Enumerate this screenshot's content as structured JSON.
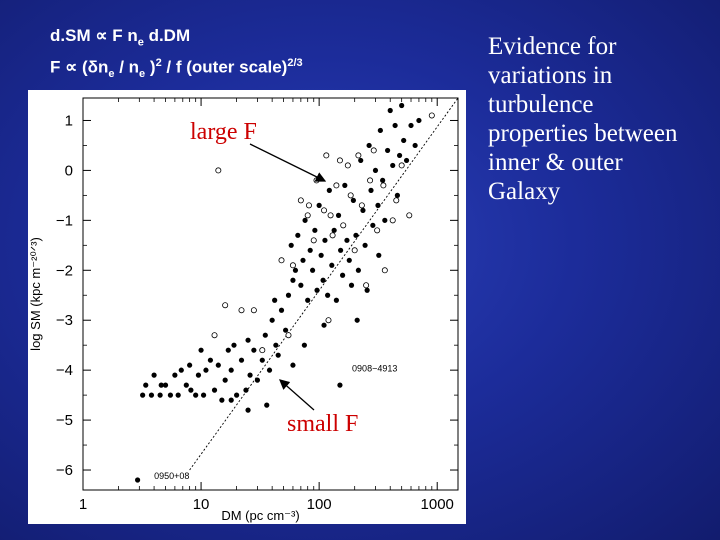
{
  "formula": {
    "line1": {
      "a": "d.SM ",
      "prop": "∝",
      "b": "  F n",
      "sub": "e",
      "c": " d.DM"
    },
    "line2": {
      "a": "F ",
      "prop": "∝",
      "b": " (",
      "delta": "δ",
      "c": "n",
      "sub1": "e",
      "d": " / n",
      "sub2": "e",
      "e": " )",
      "sup1": "2",
      "f": " / f (outer scale)",
      "sup2": "2/3"
    }
  },
  "side_text": [
    "Evidence for",
    "variations in",
    "turbulence",
    "properties between",
    "inner & outer",
    "Galaxy"
  ],
  "colors": {
    "background": "#1c2c9a",
    "annotation": "#cc0000",
    "panel": "#ffffff"
  },
  "chart_data": {
    "type": "scatter",
    "xlabel": "DM (pc cm⁻³)",
    "ylabel": "log SM (kpc m⁻²⁰ᐟ³)",
    "x_scale": "log",
    "xlim": [
      1,
      1500
    ],
    "ylim": [
      -6.4,
      1.45
    ],
    "x_ticks": [
      1,
      10,
      100,
      1000
    ],
    "x_tick_labels": [
      "1",
      "10",
      "100",
      "1000"
    ],
    "y_ticks": [
      1,
      0,
      -1,
      -2,
      -3,
      -4,
      -5,
      -6
    ],
    "y_tick_labels": [
      "1",
      "0",
      "−1",
      "−2",
      "−3",
      "−4",
      "−5",
      "−6"
    ],
    "annotations": [
      {
        "text": "large F"
      },
      {
        "text": "small F"
      },
      {
        "text": "0908−4913"
      },
      {
        "text": "0950+08"
      }
    ],
    "fit_line": {
      "x": [
        8,
        1500
      ],
      "y": [
        -6.0,
        1.45
      ],
      "style": "dotted"
    },
    "series": [
      {
        "marker": "filled",
        "points": [
          [
            2.9,
            -6.2
          ],
          [
            3.2,
            -4.5
          ],
          [
            3.4,
            -4.3
          ],
          [
            3.8,
            -4.5
          ],
          [
            4.0,
            -4.1
          ],
          [
            4.5,
            -4.5
          ],
          [
            4.6,
            -4.3
          ],
          [
            5.0,
            -4.3
          ],
          [
            5.5,
            -4.5
          ],
          [
            6.0,
            -4.1
          ],
          [
            6.4,
            -4.5
          ],
          [
            6.8,
            -4.0
          ],
          [
            7.5,
            -4.3
          ],
          [
            8.0,
            -3.9
          ],
          [
            8.2,
            -4.4
          ],
          [
            9.0,
            -4.5
          ],
          [
            9.5,
            -4.1
          ],
          [
            10.0,
            -3.6
          ],
          [
            10.5,
            -4.5
          ],
          [
            11.0,
            -4.0
          ],
          [
            12.0,
            -3.8
          ],
          [
            13.0,
            -4.4
          ],
          [
            14.0,
            -3.9
          ],
          [
            15.0,
            -4.6
          ],
          [
            16.0,
            -4.2
          ],
          [
            17.0,
            -3.6
          ],
          [
            18.0,
            -4.0
          ],
          [
            19.0,
            -3.5
          ],
          [
            20.0,
            -4.5
          ],
          [
            22.0,
            -3.8
          ],
          [
            24.0,
            -4.4
          ],
          [
            25.0,
            -3.4
          ],
          [
            26.0,
            -4.1
          ],
          [
            28.0,
            -3.6
          ],
          [
            30.0,
            -4.2
          ],
          [
            33.0,
            -3.8
          ],
          [
            35.0,
            -3.3
          ],
          [
            38.0,
            -4.0
          ],
          [
            40.0,
            -3.0
          ],
          [
            43.0,
            -3.5
          ],
          [
            45.0,
            -3.7
          ],
          [
            48.0,
            -2.8
          ],
          [
            52.0,
            -3.2
          ],
          [
            55.0,
            -2.5
          ],
          [
            58.0,
            -1.5
          ],
          [
            60.0,
            -2.2
          ],
          [
            63.0,
            -2.0
          ],
          [
            66.0,
            -1.3
          ],
          [
            70.0,
            -2.3
          ],
          [
            73.0,
            -1.8
          ],
          [
            76.0,
            -1.0
          ],
          [
            80.0,
            -2.6
          ],
          [
            84.0,
            -1.6
          ],
          [
            88.0,
            -2.0
          ],
          [
            92.0,
            -1.2
          ],
          [
            96.0,
            -2.4
          ],
          [
            100.0,
            -0.7
          ],
          [
            104.0,
            -1.7
          ],
          [
            108.0,
            -2.2
          ],
          [
            112.0,
            -1.4
          ],
          [
            118.0,
            -2.5
          ],
          [
            122.0,
            -0.4
          ],
          [
            128.0,
            -1.9
          ],
          [
            134.0,
            -1.2
          ],
          [
            140.0,
            -2.6
          ],
          [
            146.0,
            -0.9
          ],
          [
            152.0,
            -1.6
          ],
          [
            158.0,
            -2.1
          ],
          [
            165.0,
            -0.3
          ],
          [
            172.0,
            -1.4
          ],
          [
            180.0,
            -1.8
          ],
          [
            188.0,
            -2.3
          ],
          [
            195.0,
            -0.6
          ],
          [
            205.0,
            -1.3
          ],
          [
            215.0,
            -2.0
          ],
          [
            225.0,
            0.2
          ],
          [
            235.0,
            -0.8
          ],
          [
            245.0,
            -1.5
          ],
          [
            255.0,
            -2.4
          ],
          [
            265.0,
            0.5
          ],
          [
            275.0,
            -0.4
          ],
          [
            285.0,
            -1.1
          ],
          [
            300.0,
            0.0
          ],
          [
            315.0,
            -0.7
          ],
          [
            330.0,
            0.8
          ],
          [
            345.0,
            -0.2
          ],
          [
            360.0,
            -1.0
          ],
          [
            380.0,
            0.4
          ],
          [
            400.0,
            1.2
          ],
          [
            420.0,
            0.1
          ],
          [
            440.0,
            0.9
          ],
          [
            460.0,
            -0.5
          ],
          [
            480.0,
            0.3
          ],
          [
            500.0,
            1.3
          ],
          [
            520.0,
            0.6
          ],
          [
            550.0,
            0.2
          ],
          [
            600.0,
            0.9
          ],
          [
            650.0,
            0.5
          ],
          [
            700.0,
            1.0
          ],
          [
            320.0,
            -1.7
          ],
          [
            210.0,
            -3.0
          ],
          [
            60.0,
            -3.9
          ],
          [
            42.0,
            -2.6
          ],
          [
            150.0,
            -4.3
          ],
          [
            110.0,
            -3.1
          ],
          [
            75.0,
            -3.5
          ],
          [
            36.0,
            -4.7
          ],
          [
            25.0,
            -4.8
          ],
          [
            18.0,
            -4.6
          ]
        ]
      },
      {
        "marker": "open",
        "points": [
          [
            13.0,
            -3.3
          ],
          [
            14.0,
            0.0
          ],
          [
            16.0,
            -2.7
          ],
          [
            22.0,
            -2.8
          ],
          [
            28.0,
            -2.8
          ],
          [
            33.0,
            -3.6
          ],
          [
            48.0,
            -1.8
          ],
          [
            55.0,
            -3.3
          ],
          [
            70.0,
            -0.6
          ],
          [
            82.0,
            -0.7
          ],
          [
            95.0,
            -0.2
          ],
          [
            110.0,
            -0.8
          ],
          [
            115.0,
            0.3
          ],
          [
            125.0,
            -0.9
          ],
          [
            140.0,
            -0.3
          ],
          [
            150.0,
            0.2
          ],
          [
            160.0,
            -1.1
          ],
          [
            175.0,
            0.1
          ],
          [
            185.0,
            -0.5
          ],
          [
            200.0,
            -1.6
          ],
          [
            215.0,
            0.3
          ],
          [
            230.0,
            -0.7
          ],
          [
            250.0,
            -2.3
          ],
          [
            270.0,
            -0.2
          ],
          [
            290.0,
            0.4
          ],
          [
            310.0,
            -1.2
          ],
          [
            350.0,
            -0.3
          ],
          [
            360.0,
            -2.0
          ],
          [
            420.0,
            -1.0
          ],
          [
            450.0,
            -0.6
          ],
          [
            500.0,
            0.1
          ],
          [
            580.0,
            -0.9
          ],
          [
            120.0,
            -3.0
          ],
          [
            90.0,
            -1.4
          ],
          [
            60.0,
            -1.9
          ],
          [
            900.0,
            1.1
          ],
          [
            80.0,
            -0.9
          ],
          [
            130.0,
            -1.3
          ]
        ]
      }
    ]
  }
}
